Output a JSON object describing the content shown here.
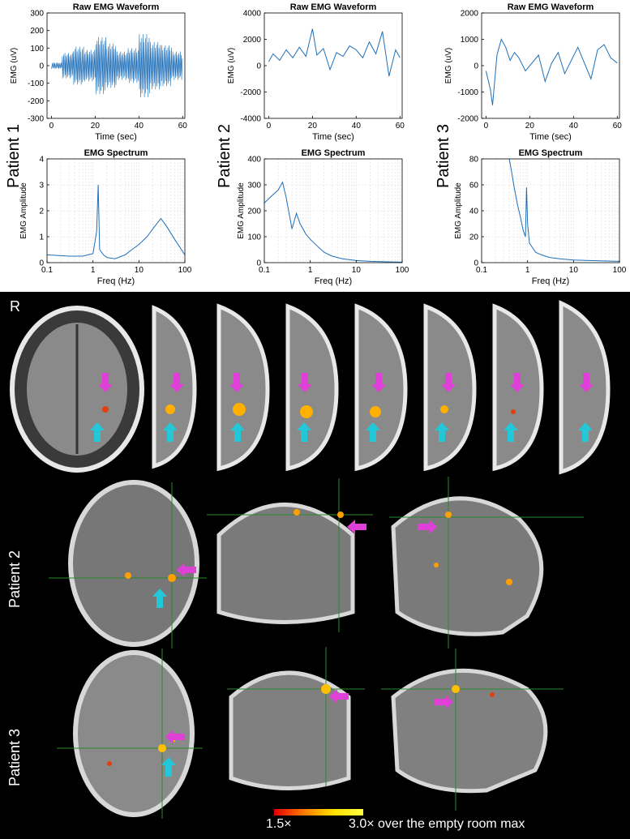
{
  "chart_data": [
    {
      "type": "line",
      "title": "Raw EMG Waveform",
      "xlabel": "Time (sec)",
      "ylabel": "EMG (uV)",
      "xlim": [
        -2,
        61
      ],
      "ylim": [
        -300,
        300
      ],
      "xticks": [
        0,
        20,
        40,
        60
      ],
      "yticks": [
        -300,
        -200,
        -100,
        0,
        100,
        200,
        300
      ],
      "xtick_labels": [
        "0",
        "20",
        "40",
        "60"
      ],
      "ytick_labels": [
        "-300",
        "-200",
        "-100",
        "0",
        "100",
        "200",
        "300"
      ],
      "series": [
        {
          "x": [
            0,
            5,
            10,
            15,
            20,
            25,
            30,
            35,
            40,
            45,
            50,
            55,
            60
          ],
          "y": [
            20,
            -80,
            120,
            -100,
            180,
            -140,
            90,
            -110,
            200,
            -150,
            130,
            -90,
            60
          ]
        }
      ]
    },
    {
      "type": "line",
      "title": "Raw EMG Waveform",
      "xlabel": "Time (sec)",
      "ylabel": "EMG (uV)",
      "xlim": [
        -2,
        61
      ],
      "ylim": [
        -4000,
        4000
      ],
      "xticks": [
        0,
        20,
        40,
        60
      ],
      "yticks": [
        -4000,
        -2000,
        0,
        2000,
        4000
      ],
      "xtick_labels": [
        "0",
        "20",
        "40",
        "60"
      ],
      "ytick_labels": [
        "-4000",
        "-2000",
        "0",
        "2000",
        "4000"
      ],
      "series": [
        {
          "x": [
            0,
            2,
            5,
            8,
            11,
            14,
            17,
            20,
            22,
            25,
            28,
            31,
            34,
            37,
            40,
            43,
            46,
            49,
            52,
            55,
            58,
            60
          ],
          "y": [
            300,
            900,
            400,
            1200,
            600,
            1400,
            700,
            2800,
            800,
            1300,
            -300,
            1000,
            700,
            1500,
            1200,
            600,
            1800,
            900,
            2600,
            -800,
            1200,
            600
          ]
        }
      ]
    },
    {
      "type": "line",
      "title": "Raw EMG Waveform",
      "xlabel": "Time (sec)",
      "ylabel": "EMG (uV)",
      "xlim": [
        -2,
        61
      ],
      "ylim": [
        -2000,
        2000
      ],
      "xticks": [
        0,
        20,
        40,
        60
      ],
      "yticks": [
        -2000,
        -1000,
        0,
        1000,
        2000
      ],
      "xtick_labels": [
        "0",
        "20",
        "40",
        "60"
      ],
      "ytick_labels": [
        "-2000",
        "-1000",
        "0",
        "1000",
        "2000"
      ],
      "series": [
        {
          "x": [
            0,
            2,
            3,
            5,
            7,
            9,
            11,
            13,
            15,
            18,
            21,
            24,
            27,
            30,
            33,
            36,
            39,
            42,
            45,
            48,
            51,
            54,
            57,
            60
          ],
          "y": [
            -200,
            -900,
            -1500,
            400,
            1000,
            700,
            200,
            500,
            300,
            -200,
            100,
            400,
            -600,
            100,
            500,
            -300,
            200,
            700,
            100,
            -500,
            600,
            800,
            300,
            100
          ]
        }
      ]
    },
    {
      "type": "line",
      "title": "EMG Spectrum",
      "xlabel": "Freq (Hz)",
      "ylabel": "EMG Amplitude",
      "xscale": "log",
      "xlim": [
        0.1,
        100
      ],
      "ylim": [
        0,
        4
      ],
      "xticks": [
        0.1,
        1,
        10,
        100
      ],
      "yticks": [
        0,
        1,
        2,
        3,
        4
      ],
      "xtick_labels": [
        "0.1",
        "1",
        "10",
        "100"
      ],
      "ytick_labels": [
        "0",
        "1",
        "2",
        "3",
        "4"
      ],
      "series": [
        {
          "x": [
            0.1,
            0.3,
            0.6,
            1.0,
            1.2,
            1.3,
            1.4,
            1.7,
            2,
            3,
            5,
            7,
            10,
            15,
            20,
            30,
            40,
            60,
            100
          ],
          "y": [
            0.3,
            0.25,
            0.25,
            0.35,
            1.2,
            3.0,
            0.5,
            0.3,
            0.2,
            0.15,
            0.3,
            0.5,
            0.7,
            1.0,
            1.3,
            1.7,
            1.4,
            0.9,
            0.3
          ]
        }
      ]
    },
    {
      "type": "line",
      "title": "EMG Spectrum",
      "xlabel": "Freq (Hz)",
      "ylabel": "EMG Amplitude",
      "xscale": "log",
      "xlim": [
        0.1,
        100
      ],
      "ylim": [
        0,
        400
      ],
      "xticks": [
        0.1,
        1,
        10,
        100
      ],
      "yticks": [
        0,
        100,
        200,
        300,
        400
      ],
      "xtick_labels": [
        "0.1",
        "1",
        "10",
        "100"
      ],
      "ytick_labels": [
        "0",
        "100",
        "200",
        "300",
        "400"
      ],
      "series": [
        {
          "x": [
            0.1,
            0.15,
            0.2,
            0.25,
            0.3,
            0.4,
            0.5,
            0.6,
            0.8,
            1,
            1.5,
            2,
            3,
            5,
            10,
            20,
            50,
            100
          ],
          "y": [
            230,
            260,
            280,
            310,
            250,
            130,
            190,
            150,
            110,
            90,
            60,
            40,
            25,
            15,
            8,
            5,
            3,
            2
          ]
        }
      ]
    },
    {
      "type": "line",
      "title": "EMG Spectrum",
      "xlabel": "Freq (Hz)",
      "ylabel": "EMG Amplitude",
      "xscale": "log",
      "xlim": [
        0.1,
        100
      ],
      "ylim": [
        0,
        80
      ],
      "xticks": [
        0.1,
        1,
        10,
        100
      ],
      "yticks": [
        0,
        20,
        40,
        60,
        80
      ],
      "xtick_labels": [
        "0.1",
        "1",
        "10",
        "100"
      ],
      "ytick_labels": [
        "0",
        "20",
        "40",
        "60",
        "80"
      ],
      "series": [
        {
          "x": [
            0.4,
            0.45,
            0.5,
            0.6,
            0.7,
            0.8,
            0.9,
            0.95,
            1.0,
            1.1,
            1.5,
            2,
            3,
            5,
            10,
            30,
            100
          ],
          "y": [
            80,
            70,
            60,
            45,
            35,
            25,
            20,
            58,
            30,
            15,
            8,
            6,
            4,
            3,
            2,
            1.5,
            1
          ]
        }
      ]
    }
  ],
  "labels": {
    "patient1": "Patient 1",
    "patient2": "Patient 2",
    "patient3": "Patient 3",
    "r": "R",
    "colorbar_low": "1.5×",
    "colorbar_high": "3.0× over the empty room max"
  },
  "colors": {
    "signal": "#1f6fb8",
    "arrow_magenta": "#e040d8",
    "arrow_cyan": "#22c8d8",
    "crosshair": "#2a8a2a"
  }
}
